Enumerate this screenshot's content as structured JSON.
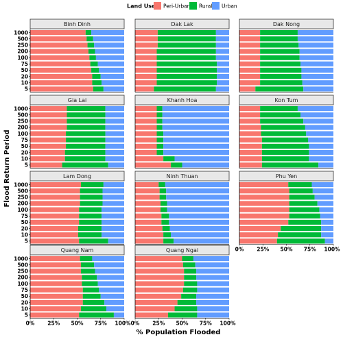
{
  "chart_data": {
    "type": "bar",
    "orientation": "horizontal",
    "stacked": true,
    "legend": {
      "title": "Land Use",
      "position": "top",
      "entries": [
        {
          "name": "Peri-Urban",
          "color": "#F8766D"
        },
        {
          "name": "Rural",
          "color": "#00BA38"
        },
        {
          "name": "Urban",
          "color": "#619CFF"
        }
      ]
    },
    "xlabel": "% Population Flooded",
    "ylabel": "Flood Return Period",
    "xlim": [
      0,
      100
    ],
    "xticks": [
      "0%",
      "25%",
      "50%",
      "75%",
      "100%"
    ],
    "categories": [
      "1000",
      "500",
      "250",
      "200",
      "100",
      "75",
      "50",
      "20",
      "10",
      "5"
    ],
    "grid": false,
    "panels": [
      {
        "province": "Binh Dinh",
        "peri_urban": [
          59,
          60,
          61,
          62,
          63,
          64,
          65,
          66,
          66,
          67
        ],
        "rural": [
          6,
          7,
          7,
          7,
          7,
          8,
          8,
          9,
          10,
          11
        ]
      },
      {
        "province": "Dak Lak",
        "peri_urban": [
          24,
          24,
          24,
          23,
          23,
          23,
          23,
          23,
          23,
          20
        ],
        "rural": [
          62,
          62,
          62,
          63,
          63,
          64,
          64,
          64,
          64,
          66
        ]
      },
      {
        "province": "Dak Nong",
        "peri_urban": [
          22,
          22,
          22,
          22,
          22,
          22,
          22,
          22,
          22,
          17
        ],
        "rural": [
          40,
          40,
          41,
          42,
          42,
          43,
          44,
          44,
          45,
          51
        ]
      },
      {
        "province": "Gia Lai",
        "peri_urban": [
          39,
          39,
          39,
          39,
          38,
          38,
          38,
          37,
          37,
          34
        ],
        "rural": [
          41,
          41,
          41,
          41,
          42,
          42,
          42,
          43,
          43,
          49
        ]
      },
      {
        "province": "Khanh Hoa",
        "peri_urban": [
          23,
          23,
          23,
          23,
          23,
          23,
          23,
          23,
          30,
          38
        ],
        "rural": [
          6,
          6,
          6,
          6,
          7,
          7,
          7,
          7,
          12,
          12
        ]
      },
      {
        "province": "Kon Tum",
        "peri_urban": [
          22,
          22,
          22,
          23,
          23,
          24,
          24,
          24,
          24,
          24
        ],
        "rural": [
          40,
          43,
          46,
          47,
          48,
          49,
          50,
          50,
          50,
          60
        ]
      },
      {
        "province": "Lam Dong",
        "peri_urban": [
          54,
          53,
          53,
          53,
          52,
          52,
          52,
          51,
          51,
          52
        ],
        "rural": [
          24,
          24,
          24,
          24,
          24,
          24,
          24,
          25,
          25,
          31
        ]
      },
      {
        "province": "Ninh Thuan",
        "peri_urban": [
          25,
          26,
          26,
          27,
          27,
          28,
          28,
          29,
          30,
          30
        ],
        "rural": [
          7,
          7,
          7,
          7,
          7,
          8,
          8,
          8,
          8,
          11
        ]
      },
      {
        "province": "Phu Yen",
        "peri_urban": [
          52,
          53,
          53,
          53,
          53,
          53,
          52,
          44,
          41,
          40
        ],
        "rural": [
          25,
          25,
          27,
          30,
          32,
          33,
          35,
          43,
          46,
          51
        ]
      },
      {
        "province": "Quang Nam",
        "peri_urban": [
          53,
          54,
          54,
          55,
          55,
          56,
          56,
          56,
          54,
          52
        ],
        "rural": [
          13,
          14,
          15,
          16,
          17,
          17,
          19,
          23,
          27,
          37
        ]
      },
      {
        "province": "Quang Ngai",
        "peri_urban": [
          50,
          51,
          52,
          52,
          52,
          51,
          49,
          45,
          42,
          35
        ],
        "rural": [
          12,
          13,
          13,
          13,
          14,
          15,
          16,
          20,
          24,
          31
        ]
      }
    ]
  }
}
